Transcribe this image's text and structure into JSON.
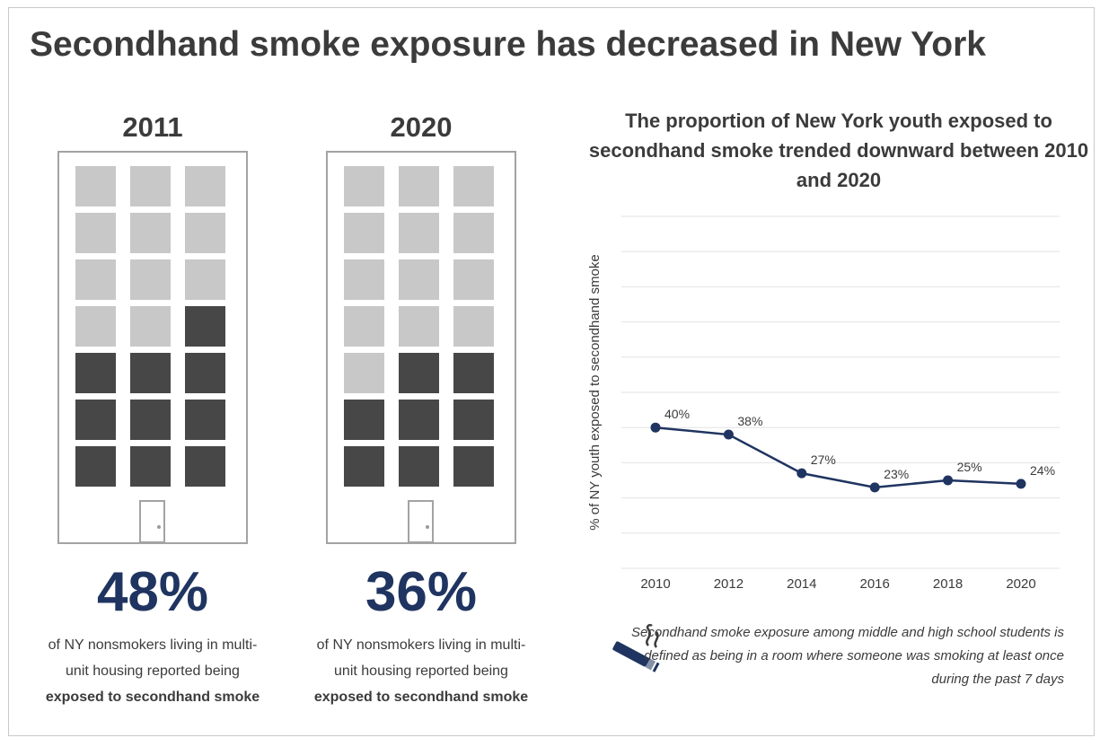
{
  "title": "Secondhand smoke exposure has decreased in New York",
  "panels": [
    {
      "year": "2011",
      "percent": "48%",
      "caption_line1": "of NY nonsmokers living in multi-",
      "caption_line2": "unit housing reported being",
      "caption_bold": "exposed to secondhand smoke",
      "windows_total": 21,
      "windows_exposed": 10
    },
    {
      "year": "2020",
      "percent": "36%",
      "caption_line1": "of NY nonsmokers living in multi-",
      "caption_line2": "unit housing reported being",
      "caption_bold": "exposed to secondhand smoke",
      "windows_total": 21,
      "windows_exposed": 8
    }
  ],
  "colors": {
    "window_light": "#c8c8c8",
    "window_dark": "#474747",
    "accent": "#1f3460",
    "line": "#1f3460",
    "grid": "#e3e3e3"
  },
  "chart_title": "The proportion of New York youth exposed to secondhand smoke trended downward between 2010 and 2020",
  "chart_data": {
    "type": "line",
    "x": [
      "2010",
      "2012",
      "2014",
      "2016",
      "2018",
      "2020"
    ],
    "series": [
      {
        "values": [
          40,
          38,
          27,
          23,
          25,
          24
        ],
        "labels": [
          "40%",
          "38%",
          "27%",
          "23%",
          "25%",
          "24%"
        ]
      }
    ],
    "xlabel": "",
    "ylabel": "% of NY youth exposed to secondhand smoke",
    "ylim": [
      0,
      100
    ],
    "grid": true
  },
  "note": "Secondhand smoke exposure among middle and high school students is defined as being in a room where someone was smoking at least once during the past 7 days",
  "note_icon": "cigarette-icon"
}
